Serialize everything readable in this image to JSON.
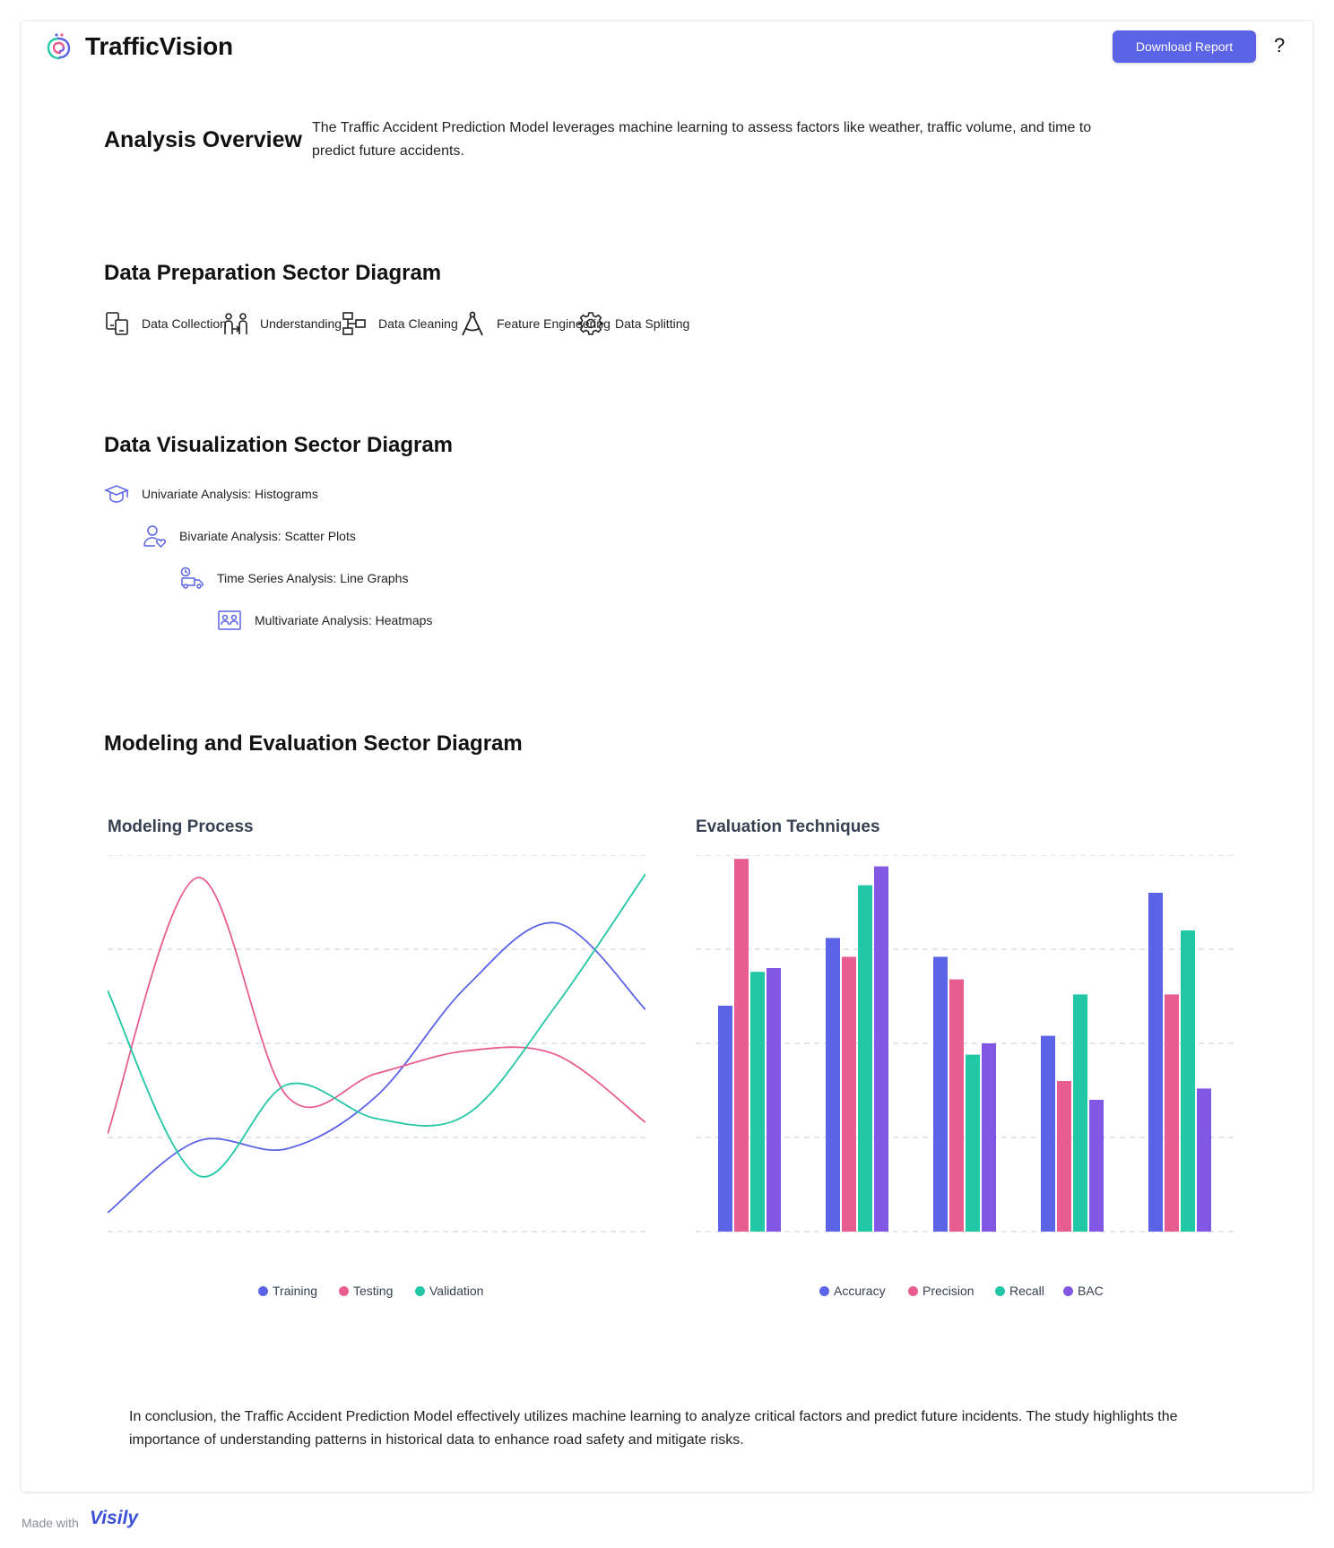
{
  "header": {
    "brand": "TrafficVision",
    "download_label": "Download Report",
    "help_label": "?",
    "logo_icon": "spiral-logo-icon"
  },
  "overview": {
    "title": "Analysis Overview",
    "text": "The Traffic Accident Prediction Model leverages machine learning to assess factors like weather, traffic volume, and time to predict future accidents."
  },
  "data_preparation": {
    "title": "Data Preparation Sector Diagram",
    "items": [
      {
        "label": "Data Collection",
        "icon": "devices-icon"
      },
      {
        "label": "Understanding",
        "icon": "people-exchange-icon"
      },
      {
        "label": "Data Cleaning",
        "icon": "flowchart-icon"
      },
      {
        "label": "Feature Engineering",
        "icon": "compass-drafting-icon"
      },
      {
        "label": "Data Splitting",
        "icon": "gear-icon"
      }
    ]
  },
  "data_visualization": {
    "title": "Data Visualization Sector Diagram",
    "items": [
      {
        "label": "Univariate Analysis: Histograms",
        "icon": "graduation-cap-icon"
      },
      {
        "label": "Bivariate Analysis: Scatter Plots",
        "icon": "user-heart-icon"
      },
      {
        "label": "Time Series Analysis: Line Graphs",
        "icon": "delivery-truck-icon"
      },
      {
        "label": "Multivariate Analysis: Heatmaps",
        "icon": "id-card-icon"
      }
    ]
  },
  "modeling": {
    "title": "Modeling and Evaluation Sector Diagram"
  },
  "chart_data": [
    {
      "type": "line",
      "title": "Modeling Process",
      "x": [
        0,
        1,
        2,
        3,
        4,
        5,
        6
      ],
      "ylim": [
        0,
        100
      ],
      "grid": true,
      "legend": "bottom-center",
      "series": [
        {
          "name": "Training",
          "color": "#5b63e6",
          "values": [
            5,
            24,
            22,
            36,
            65,
            82,
            59
          ]
        },
        {
          "name": "Testing",
          "color": "#e85d8f",
          "values": [
            26,
            94,
            36,
            42,
            48,
            47,
            29
          ]
        },
        {
          "name": "Validation",
          "color": "#22c7a5",
          "values": [
            64,
            15,
            39,
            30,
            31,
            60,
            95
          ]
        }
      ]
    },
    {
      "type": "bar",
      "title": "Evaluation Techniques",
      "categories": [
        "",
        "",
        "",
        "",
        ""
      ],
      "ylim": [
        0,
        100
      ],
      "grid": true,
      "legend": "bottom-center",
      "series": [
        {
          "name": "Accuracy",
          "color": "#5b63e6",
          "values": [
            60,
            78,
            73,
            52,
            90
          ]
        },
        {
          "name": "Precision",
          "color": "#e85d8f",
          "values": [
            99,
            73,
            67,
            40,
            63
          ]
        },
        {
          "name": "Recall",
          "color": "#22c7a5",
          "values": [
            69,
            92,
            47,
            63,
            80
          ]
        },
        {
          "name": "BAC",
          "color": "#8257e6",
          "values": [
            70,
            97,
            50,
            35,
            38
          ]
        }
      ]
    }
  ],
  "conclusion": {
    "text": "In conclusion, the Traffic Accident Prediction Model effectively utilizes machine learning to analyze critical factors and predict future incidents. The study highlights the importance of understanding patterns in historical data to enhance road safety and mitigate risks."
  },
  "footer": {
    "made_with": "Made with",
    "brand": "Visily"
  }
}
